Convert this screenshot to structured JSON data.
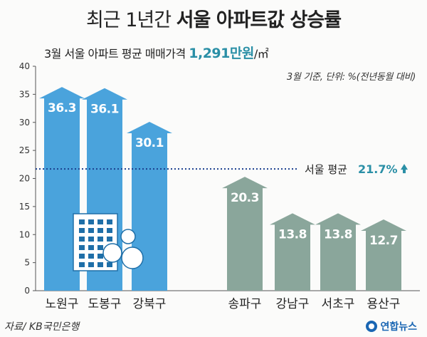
{
  "title": {
    "prefix": "최근 1년간",
    "main": "서울 아파트값 상승률"
  },
  "subtitle": {
    "text": "3월 서울 아파트 평균 매매가격",
    "price": "1,291만원",
    "unit": "/㎡"
  },
  "note": "3월 기준, 단위: %(전년동월 대비)",
  "source": "자료/ KB국민은행",
  "logo": "연합뉴스",
  "colors": {
    "blue": "#4aa3dc",
    "blue_label": "#ffffff",
    "green": "#8aa69b",
    "green_label": "#ffffff",
    "avg_line": "#1a3f8f",
    "avg_label": "#2a8fa6"
  },
  "chart_data": {
    "type": "bar",
    "categories": [
      "노원구",
      "도봉구",
      "강북구",
      "송파구",
      "강남구",
      "서초구",
      "용산구"
    ],
    "values": [
      36.3,
      36.1,
      30.1,
      20.3,
      13.8,
      13.8,
      12.7
    ],
    "value_labels": [
      "36.3",
      "36.1",
      "30.1",
      "20.3",
      "13.8",
      "13.8",
      "12.7"
    ],
    "groups": [
      "blue",
      "blue",
      "blue",
      "green",
      "green",
      "green",
      "green"
    ],
    "ylim": [
      0,
      40
    ],
    "yticks": [
      0,
      5,
      10,
      15,
      20,
      25,
      30,
      35,
      40
    ],
    "grid": false,
    "reference_line": {
      "label": "서울 평균",
      "value": 21.7,
      "value_label": "21.7%",
      "arrow": "up"
    }
  }
}
